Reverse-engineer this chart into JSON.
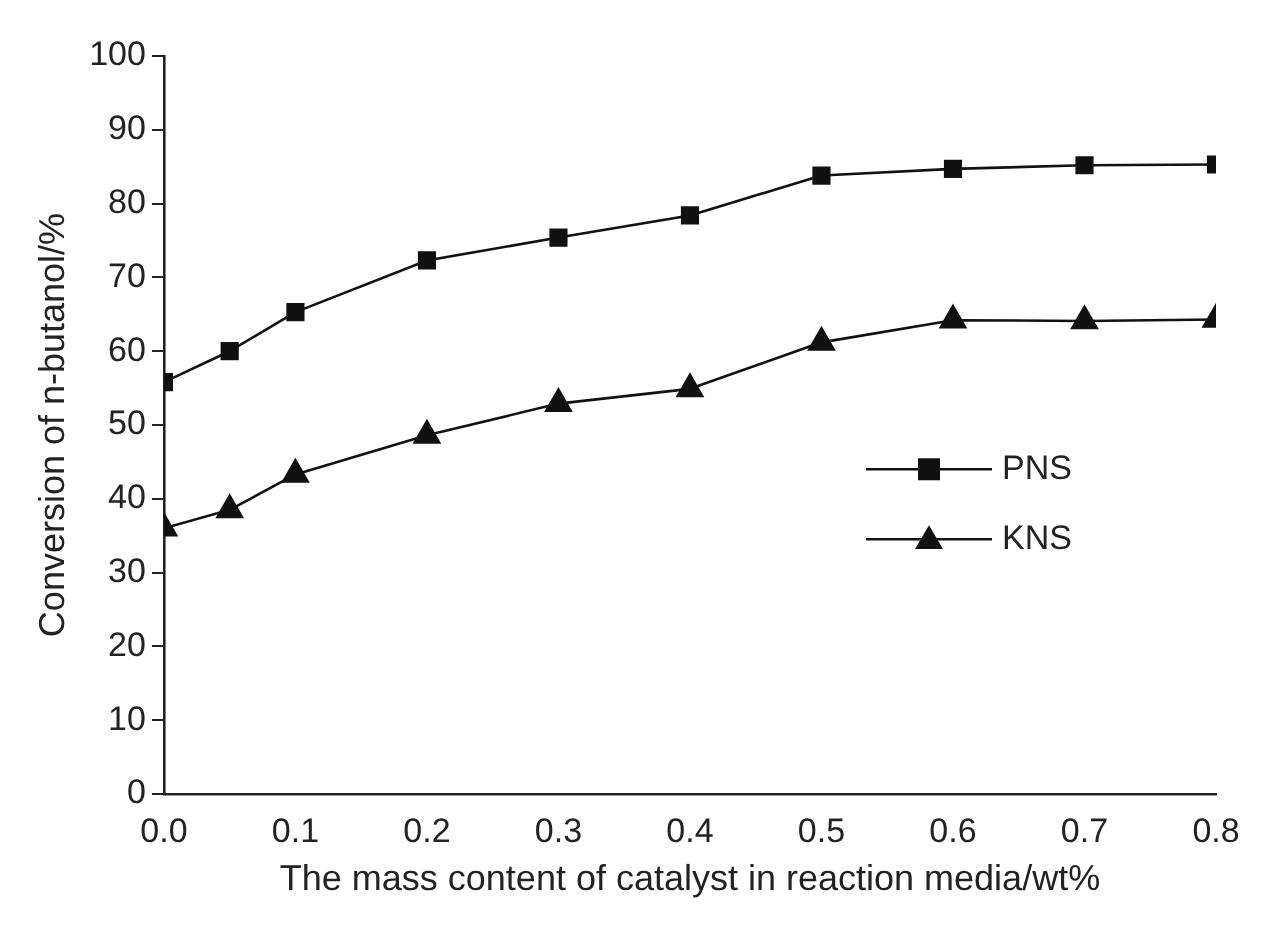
{
  "chart_data": {
    "type": "line",
    "xlabel": "The mass content of catalyst in reaction media/wt%",
    "ylabel": "Conversion of n-butanol/%",
    "x": [
      0,
      0.05,
      0.1,
      0.2,
      0.3,
      0.4,
      0.5,
      0.6,
      0.7,
      0.8
    ],
    "series": [
      {
        "name": "PNS",
        "color": "#111111",
        "marker": "square",
        "values": [
          55.8,
          60,
          65.3,
          72.3,
          75.4,
          78.4,
          83.8,
          84.7,
          85.2,
          85.3
        ]
      },
      {
        "name": "KNS",
        "color": "#111111",
        "marker": "triangle",
        "values": [
          36,
          38.5,
          43.3,
          48.6,
          52.9,
          54.9,
          61.2,
          64.2,
          64.1,
          64.3
        ]
      }
    ],
    "xlim": [
      0,
      0.8
    ],
    "xticks": [
      {
        "value": 0,
        "label": "0.0"
      },
      0.1,
      0.2,
      0.3,
      0.4,
      0.5,
      0.6,
      0.7,
      0.8
    ],
    "ylim": [
      0,
      100
    ],
    "yticks": [
      0,
      10,
      20,
      30,
      40,
      50,
      60,
      70,
      80,
      90,
      100
    ],
    "grid": false,
    "legend": "right",
    "line_style": "solid"
  }
}
